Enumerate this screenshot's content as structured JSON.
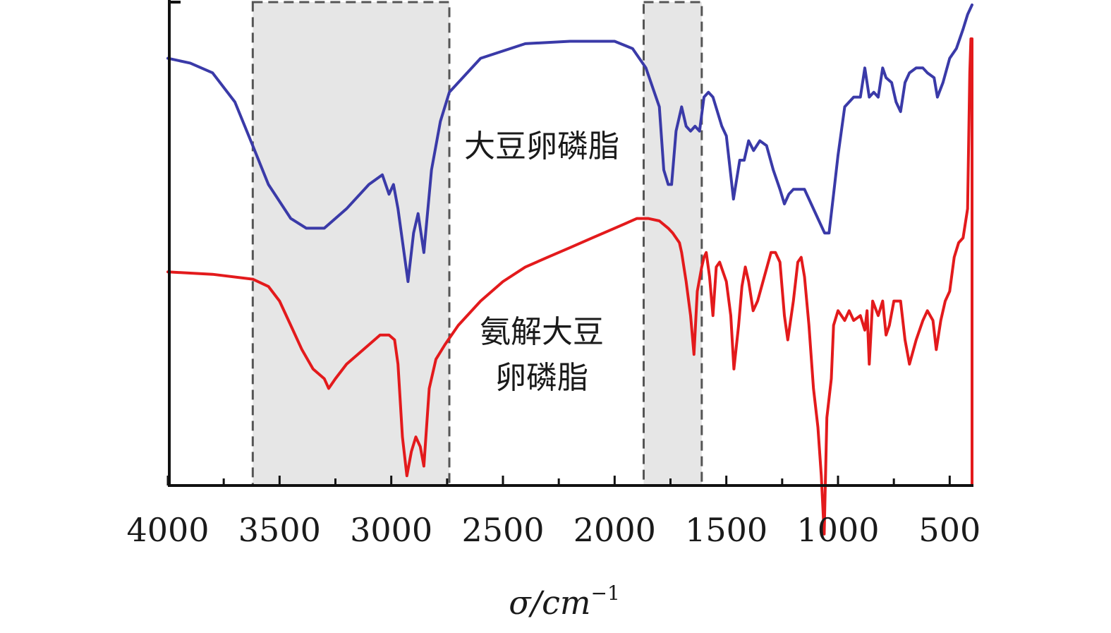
{
  "chart_data": {
    "type": "line",
    "title": "",
    "xlabel": "σ/cm",
    "xlabel_superscript": "−1",
    "ylabel": "",
    "x_reversed": true,
    "xlim": [
      4000,
      400
    ],
    "x_ticks": [
      "4000",
      "3500",
      "3000",
      "2500",
      "2000",
      "1500",
      "1000",
      "500"
    ],
    "grid": false,
    "legend": "none",
    "highlight_ranges": [
      [
        3620,
        2740
      ],
      [
        1870,
        1610
      ]
    ],
    "series": [
      {
        "name": "大豆卵磷脂",
        "color": "#3a3aa8",
        "points": [
          [
            4000,
            88
          ],
          [
            3900,
            87
          ],
          [
            3800,
            85
          ],
          [
            3700,
            79
          ],
          [
            3620,
            70
          ],
          [
            3550,
            62
          ],
          [
            3450,
            55
          ],
          [
            3380,
            53
          ],
          [
            3300,
            53
          ],
          [
            3200,
            57
          ],
          [
            3100,
            62
          ],
          [
            3040,
            64
          ],
          [
            3010,
            60
          ],
          [
            2990,
            62
          ],
          [
            2970,
            57
          ],
          [
            2925,
            42
          ],
          [
            2900,
            52
          ],
          [
            2880,
            56
          ],
          [
            2854,
            48
          ],
          [
            2820,
            65
          ],
          [
            2780,
            75
          ],
          [
            2740,
            81
          ],
          [
            2600,
            88
          ],
          [
            2400,
            91
          ],
          [
            2200,
            91.5
          ],
          [
            2000,
            91.5
          ],
          [
            1920,
            90
          ],
          [
            1860,
            86
          ],
          [
            1800,
            78
          ],
          [
            1780,
            65
          ],
          [
            1760,
            62
          ],
          [
            1745,
            62
          ],
          [
            1725,
            73
          ],
          [
            1700,
            78
          ],
          [
            1680,
            74
          ],
          [
            1660,
            73
          ],
          [
            1640,
            74
          ],
          [
            1620,
            73
          ],
          [
            1600,
            80
          ],
          [
            1580,
            81
          ],
          [
            1560,
            80
          ],
          [
            1540,
            77
          ],
          [
            1520,
            74
          ],
          [
            1500,
            72
          ],
          [
            1468,
            59
          ],
          [
            1440,
            67
          ],
          [
            1420,
            67
          ],
          [
            1400,
            71
          ],
          [
            1378,
            69
          ],
          [
            1350,
            71
          ],
          [
            1320,
            70
          ],
          [
            1290,
            65
          ],
          [
            1260,
            61
          ],
          [
            1240,
            58
          ],
          [
            1220,
            60
          ],
          [
            1200,
            61
          ],
          [
            1175,
            61
          ],
          [
            1150,
            61
          ],
          [
            1120,
            58
          ],
          [
            1090,
            55
          ],
          [
            1060,
            52
          ],
          [
            1040,
            52
          ],
          [
            1020,
            60
          ],
          [
            1000,
            68
          ],
          [
            970,
            78
          ],
          [
            930,
            80
          ],
          [
            900,
            80
          ],
          [
            880,
            86
          ],
          [
            860,
            80
          ],
          [
            840,
            81
          ],
          [
            820,
            80
          ],
          [
            800,
            86
          ],
          [
            785,
            84
          ],
          [
            760,
            83
          ],
          [
            740,
            79
          ],
          [
            720,
            77
          ],
          [
            700,
            83
          ],
          [
            680,
            85
          ],
          [
            650,
            86
          ],
          [
            620,
            86
          ],
          [
            600,
            85
          ],
          [
            570,
            84
          ],
          [
            555,
            80
          ],
          [
            530,
            83
          ],
          [
            500,
            88
          ],
          [
            470,
            90
          ],
          [
            440,
            94
          ],
          [
            420,
            97
          ],
          [
            400,
            99
          ]
        ]
      },
      {
        "name": "氨解大豆\n卵磷脂",
        "color": "#e31a1c",
        "points": [
          [
            4000,
            44
          ],
          [
            3800,
            43.5
          ],
          [
            3620,
            42.5
          ],
          [
            3550,
            41
          ],
          [
            3500,
            38
          ],
          [
            3450,
            33
          ],
          [
            3400,
            28
          ],
          [
            3350,
            24
          ],
          [
            3300,
            22
          ],
          [
            3280,
            20
          ],
          [
            3250,
            22
          ],
          [
            3200,
            25
          ],
          [
            3150,
            27
          ],
          [
            3100,
            29
          ],
          [
            3050,
            31
          ],
          [
            3010,
            31
          ],
          [
            2985,
            30
          ],
          [
            2970,
            25
          ],
          [
            2950,
            10
          ],
          [
            2930,
            2
          ],
          [
            2910,
            7
          ],
          [
            2890,
            10
          ],
          [
            2870,
            8
          ],
          [
            2854,
            4
          ],
          [
            2830,
            20
          ],
          [
            2800,
            26
          ],
          [
            2760,
            29
          ],
          [
            2700,
            33
          ],
          [
            2600,
            38
          ],
          [
            2500,
            42
          ],
          [
            2400,
            45
          ],
          [
            2300,
            47
          ],
          [
            2200,
            49
          ],
          [
            2100,
            51
          ],
          [
            2000,
            53
          ],
          [
            1900,
            55
          ],
          [
            1850,
            55
          ],
          [
            1800,
            54.5
          ],
          [
            1760,
            53
          ],
          [
            1740,
            52
          ],
          [
            1710,
            50
          ],
          [
            1700,
            48
          ],
          [
            1680,
            42
          ],
          [
            1660,
            35
          ],
          [
            1645,
            27
          ],
          [
            1630,
            40
          ],
          [
            1610,
            45
          ],
          [
            1600,
            47
          ],
          [
            1590,
            48
          ],
          [
            1575,
            43
          ],
          [
            1560,
            35
          ],
          [
            1545,
            45
          ],
          [
            1530,
            46
          ],
          [
            1500,
            42
          ],
          [
            1480,
            35
          ],
          [
            1466,
            24
          ],
          [
            1445,
            33
          ],
          [
            1430,
            41
          ],
          [
            1415,
            45
          ],
          [
            1400,
            42
          ],
          [
            1380,
            36
          ],
          [
            1360,
            38
          ],
          [
            1330,
            43
          ],
          [
            1300,
            48
          ],
          [
            1280,
            48
          ],
          [
            1260,
            46
          ],
          [
            1240,
            35
          ],
          [
            1225,
            30
          ],
          [
            1200,
            38
          ],
          [
            1180,
            46
          ],
          [
            1165,
            47
          ],
          [
            1150,
            43
          ],
          [
            1130,
            33
          ],
          [
            1110,
            20
          ],
          [
            1090,
            12
          ],
          [
            1075,
            2
          ],
          [
            1062,
            -10
          ],
          [
            1050,
            14
          ],
          [
            1030,
            22
          ],
          [
            1020,
            33
          ],
          [
            1000,
            36
          ],
          [
            970,
            34
          ],
          [
            950,
            36
          ],
          [
            930,
            34
          ],
          [
            900,
            35
          ],
          [
            880,
            32
          ],
          [
            870,
            36
          ],
          [
            860,
            25
          ],
          [
            845,
            38
          ],
          [
            820,
            35
          ],
          [
            800,
            38
          ],
          [
            785,
            31
          ],
          [
            770,
            33
          ],
          [
            750,
            38
          ],
          [
            720,
            38
          ],
          [
            700,
            30
          ],
          [
            680,
            25
          ],
          [
            650,
            30
          ],
          [
            620,
            34
          ],
          [
            600,
            36
          ],
          [
            575,
            34
          ],
          [
            560,
            28
          ],
          [
            540,
            34
          ],
          [
            520,
            38
          ],
          [
            500,
            40
          ],
          [
            480,
            47
          ],
          [
            460,
            50
          ],
          [
            440,
            51
          ],
          [
            420,
            57
          ],
          [
            410,
            85
          ],
          [
            405,
            92
          ],
          [
            400,
            92
          ],
          [
            400,
            0
          ]
        ]
      }
    ],
    "annotations": [
      {
        "text": "大豆卵磷脂"
      },
      {
        "text": "氨解大豆"
      },
      {
        "text": "卵磷脂"
      }
    ]
  }
}
